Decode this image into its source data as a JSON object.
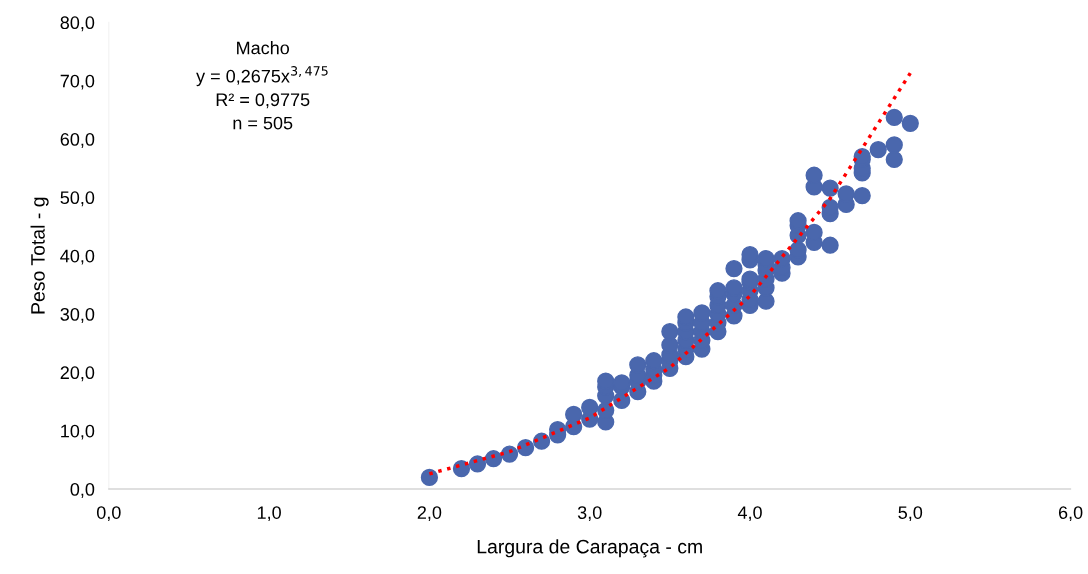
{
  "chart_data": {
    "type": "scatter",
    "xlabel": "Largura de Carapaça - cm",
    "ylabel": "Peso Total - g",
    "annotations": [
      "Macho\ny = 0,2675x$^{3,475}$\nR² = 0,9775\nn = 505"
    ],
    "xlim": [
      0,
      6
    ],
    "ylim": [
      0,
      80
    ],
    "xticks": [
      {
        "value": 0,
        "label": "0,0"
      },
      {
        "value": 1,
        "label": "1,0"
      },
      {
        "value": 2,
        "label": "2,0"
      },
      {
        "value": 3,
        "label": "3,0"
      },
      {
        "value": 4,
        "label": "4,0"
      },
      {
        "value": 5,
        "label": "5,0"
      },
      {
        "value": 6,
        "label": "6,0"
      }
    ],
    "yticks": [
      {
        "value": 0,
        "label": "0,0"
      },
      {
        "value": 10,
        "label": "10,0"
      },
      {
        "value": 20,
        "label": "20,0"
      },
      {
        "value": 30,
        "label": "30,0"
      },
      {
        "value": 40,
        "label": "40,0"
      },
      {
        "value": 50,
        "label": "50,0"
      },
      {
        "value": 60,
        "label": "60,0"
      },
      {
        "value": 70,
        "label": "70,0"
      },
      {
        "value": 80,
        "label": "80,0"
      }
    ],
    "grid": false,
    "legend": false,
    "series": [
      {
        "color": "#4a67ad",
        "marker": "circle",
        "x": [
          2.0,
          2.2,
          2.3,
          2.4,
          2.5,
          2.6,
          2.7,
          2.8,
          2.8,
          2.9,
          2.9,
          3.0,
          3.0,
          3.1,
          3.1,
          3.1,
          3.1,
          3.1,
          3.2,
          3.2,
          3.2,
          3.3,
          3.3,
          3.3,
          3.3,
          3.4,
          3.4,
          3.4,
          3.4,
          3.5,
          3.5,
          3.5,
          3.5,
          3.5,
          3.6,
          3.6,
          3.6,
          3.6,
          3.6,
          3.6,
          3.7,
          3.7,
          3.7,
          3.7,
          3.7,
          3.8,
          3.8,
          3.8,
          3.8,
          3.8,
          3.8,
          3.9,
          3.9,
          3.9,
          3.9,
          3.9,
          4.0,
          4.0,
          4.0,
          4.0,
          4.0,
          4.0,
          4.0,
          4.1,
          4.1,
          4.1,
          4.1,
          4.1,
          4.1,
          4.2,
          4.2,
          4.2,
          4.3,
          4.3,
          4.3,
          4.3,
          4.3,
          4.4,
          4.4,
          4.4,
          4.4,
          4.5,
          4.5,
          4.5,
          4.5,
          4.6,
          4.6,
          4.7,
          4.7,
          4.7,
          4.7,
          4.7,
          4.8,
          4.9,
          4.9,
          4.9,
          5.0
        ],
        "values": [
          2.0,
          3.5,
          4.3,
          5.2,
          6.0,
          7.1,
          8.2,
          9.3,
          10.2,
          10.7,
          12.8,
          12.0,
          14.0,
          11.5,
          13.5,
          16.0,
          17.5,
          18.5,
          15.2,
          17.5,
          18.2,
          16.7,
          18.5,
          19.5,
          21.3,
          18.5,
          19.5,
          20.5,
          22.0,
          20.7,
          22.0,
          23.0,
          24.7,
          27.0,
          22.7,
          24.0,
          25.5,
          27.0,
          28.5,
          29.5,
          24.0,
          25.5,
          27.0,
          28.5,
          30.2,
          27.0,
          28.5,
          30.0,
          31.5,
          33.0,
          34.0,
          29.7,
          31.5,
          33.5,
          34.5,
          37.8,
          31.5,
          32.5,
          34.0,
          35.5,
          36.0,
          39.3,
          40.2,
          32.2,
          34.5,
          36.0,
          37.5,
          38.5,
          39.5,
          37.0,
          38.0,
          39.5,
          39.8,
          41.0,
          43.5,
          45.2,
          46.0,
          42.3,
          44.0,
          51.8,
          53.8,
          41.8,
          47.2,
          48.3,
          51.6,
          48.8,
          50.6,
          50.3,
          54.2,
          55.0,
          56.5,
          57.0,
          58.2,
          56.5,
          59.0,
          63.7,
          62.7
        ]
      },
      {
        "type": "line",
        "color": "#ff0000",
        "marker": "none",
        "line_style": "dotted",
        "x": [
          2.0,
          2.5,
          3.0,
          3.5,
          4.0,
          4.5,
          5.0
        ],
        "values": [
          2.6,
          6.4,
          12.2,
          20.8,
          33.1,
          49.8,
          71.3
        ]
      }
    ]
  }
}
